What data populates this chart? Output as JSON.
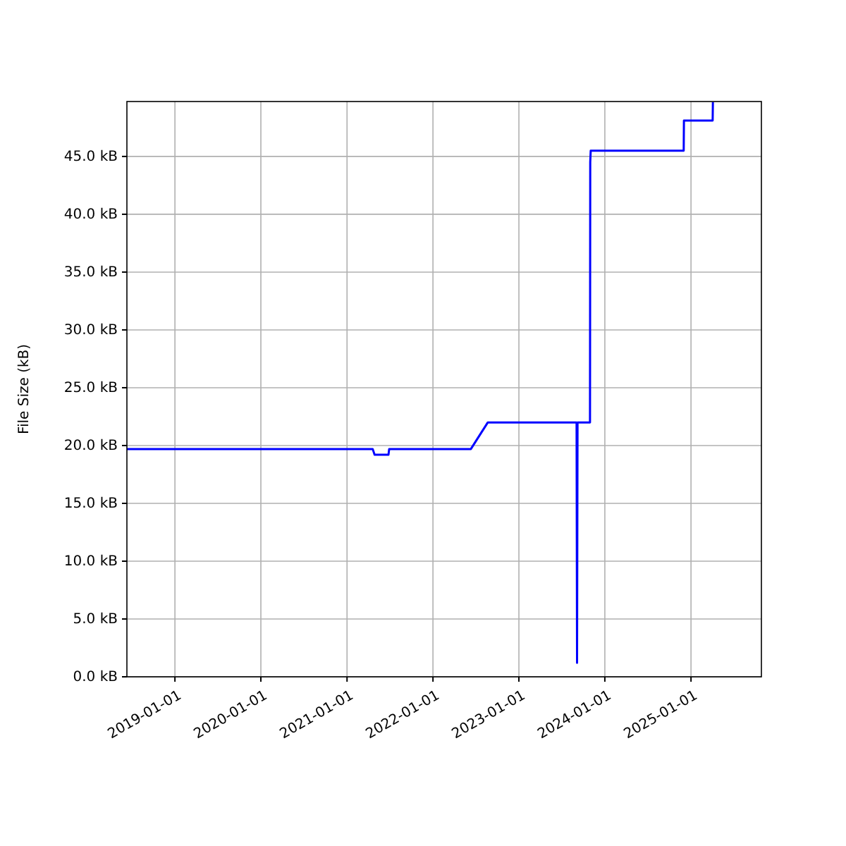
{
  "chart_data": {
    "type": "line",
    "ylabel": "File Size (kB)",
    "x": [
      "2018-06-11",
      "2021-04-20",
      "2021-04-28",
      "2021-06-26",
      "2021-06-29",
      "2022-06-11",
      "2022-08-22",
      "2023-09-03",
      "2023-09-05",
      "2023-09-07",
      "2023-10-30",
      "2023-10-31",
      "2023-11-02",
      "2024-12-01",
      "2024-12-02",
      "2025-04-03",
      "2025-04-04"
    ],
    "series": [
      {
        "color": "#0000ff",
        "values": [
          19.7,
          19.7,
          19.2,
          19.2,
          19.7,
          19.7,
          22.0,
          22.0,
          1.2,
          22.0,
          22.0,
          44.5,
          45.5,
          45.5,
          48.1,
          48.1,
          49.7
        ]
      }
    ],
    "xlim": [
      "2018-06-11",
      "2025-10-27"
    ],
    "xticks": [
      "2019-01-01",
      "2020-01-01",
      "2021-01-01",
      "2022-01-01",
      "2023-01-01",
      "2024-01-01",
      "2025-01-01"
    ],
    "ylim": [
      0,
      49.75
    ],
    "yticks": [
      {
        "value": 0,
        "label": "0.0 kB"
      },
      {
        "value": 5,
        "label": "5.0 kB"
      },
      {
        "value": 10,
        "label": "10.0 kB"
      },
      {
        "value": 15,
        "label": "15.0 kB"
      },
      {
        "value": 20,
        "label": "20.0 kB"
      },
      {
        "value": 25,
        "label": "25.0 kB"
      },
      {
        "value": 30,
        "label": "30.0 kB"
      },
      {
        "value": 35,
        "label": "35.0 kB"
      },
      {
        "value": 40,
        "label": "40.0 kB"
      },
      {
        "value": 45,
        "label": "45.0 kB"
      }
    ],
    "grid": true
  }
}
